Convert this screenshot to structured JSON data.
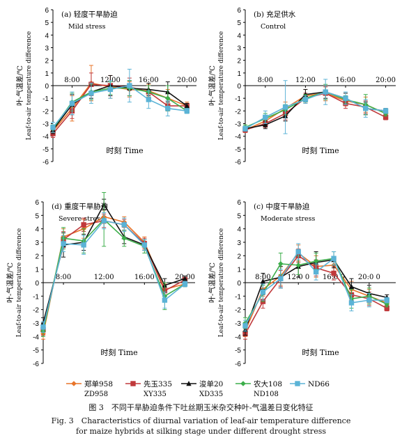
{
  "legend": [
    {
      "name": "郑单958",
      "name2": "ZD958",
      "color": "#e8752a",
      "marker": "diamond"
    },
    {
      "name": "先玉335",
      "name2": "XY335",
      "color": "#c0393b",
      "marker": "square"
    },
    {
      "name": "浚单20",
      "name2": "XD335",
      "color": "#111111",
      "marker": "triangle"
    },
    {
      "name": "农大108",
      "name2": "ND108",
      "color": "#3cae4a",
      "marker": "diamond"
    },
    {
      "name": "ND66",
      "name2": "",
      "color": "#5bb3d6",
      "marker": "square"
    }
  ],
  "caption": {
    "cn": "图 3　不同干旱胁迫条件下吐丝期玉米杂交种叶-气温差日变化特征",
    "en1": "Fig. 3　Characteristics of diurnal variation of leaf-air temperature difference",
    "en2": "for maize hybrids at silking stage under different drought stress"
  },
  "chart_data": [
    {
      "type": "line",
      "panel_id": "a",
      "title_cn": "(a) 轻度干旱胁迫",
      "title_en": "Mild stress",
      "xlabel": "时刻 Time",
      "ylabel_cn": "叶-气温差/℃",
      "ylabel_en": "Leaf-to-air temperature difference",
      "x": [
        6,
        8,
        10,
        12,
        14,
        16,
        18,
        20
      ],
      "x_tick_labels": [
        {
          "x": 8,
          "label": "8:00"
        },
        {
          "x": 12,
          "label": "12:00"
        },
        {
          "x": 16,
          "label": "16:00"
        },
        {
          "x": 20,
          "label": "20:00"
        }
      ],
      "ylim": [
        -6,
        6
      ],
      "y_ticks": [
        -6,
        -5,
        -4,
        -3,
        -2,
        -1,
        0,
        1,
        2,
        3,
        4,
        5,
        6
      ],
      "series": [
        {
          "name": "郑单958",
          "values": [
            -3.6,
            -1.8,
            0.2,
            -0.1,
            -0.3,
            -0.4,
            -1.0,
            -1.6
          ],
          "errors": [
            0.3,
            1.0,
            1.4,
            0.9,
            0.6,
            0.5,
            0.7,
            0.3
          ]
        },
        {
          "name": "先玉335",
          "values": [
            -3.8,
            -2.0,
            0.1,
            0.0,
            -0.1,
            -0.5,
            -1.6,
            -1.6
          ],
          "errors": [
            0.3,
            0.6,
            0.9,
            0.8,
            0.7,
            0.5,
            0.4,
            0.2
          ]
        },
        {
          "name": "浚单20",
          "values": [
            -3.5,
            -1.5,
            -0.5,
            0.0,
            -0.2,
            -0.3,
            -0.5,
            -1.6
          ],
          "errors": [
            0.3,
            0.8,
            0.5,
            0.8,
            0.6,
            0.5,
            0.8,
            0.2
          ]
        },
        {
          "name": "农大108",
          "values": [
            -3.4,
            -1.3,
            -0.5,
            -0.2,
            -0.2,
            -0.5,
            -1.0,
            -2.0
          ],
          "errors": [
            0.3,
            0.7,
            0.6,
            0.5,
            0.6,
            0.5,
            1.0,
            0.2
          ]
        },
        {
          "name": "ND66",
          "values": [
            -3.3,
            -1.4,
            -0.6,
            -0.3,
            0.0,
            -1.1,
            -1.8,
            -2.0
          ],
          "errors": [
            0.4,
            0.9,
            0.8,
            0.7,
            1.3,
            0.7,
            0.6,
            0.2
          ]
        }
      ]
    },
    {
      "type": "line",
      "panel_id": "b",
      "title_cn": "(b) 充足供水",
      "title_en": "Control",
      "xlabel": "时刻 Time",
      "ylabel_cn": "叶-气温差/℃",
      "ylabel_en": "Leaf-to-air temperature difference",
      "x": [
        6,
        8,
        10,
        12,
        14,
        16,
        18,
        20
      ],
      "x_tick_labels": [
        {
          "x": 8,
          "label": "8:00"
        },
        {
          "x": 12,
          "label": "12:00"
        },
        {
          "x": 16,
          "label": "16:00"
        },
        {
          "x": 20,
          "label": "20:00"
        }
      ],
      "ylim": [
        -6,
        6
      ],
      "y_ticks": [
        -6,
        -5,
        -4,
        -3,
        -2,
        -1,
        0,
        1,
        2,
        3,
        4,
        5,
        6
      ],
      "series": [
        {
          "name": "郑单958",
          "values": [
            -3.5,
            -2.8,
            -1.8,
            -0.8,
            -0.6,
            -1.2,
            -1.5,
            -2.2
          ],
          "errors": [
            0.2,
            0.4,
            0.5,
            0.5,
            0.6,
            0.4,
            0.6,
            0.2
          ]
        },
        {
          "name": "先玉335",
          "values": [
            -3.5,
            -3.0,
            -2.2,
            -1.0,
            -0.6,
            -1.4,
            -1.7,
            -2.5
          ],
          "errors": [
            0.2,
            0.3,
            0.5,
            0.4,
            0.5,
            0.4,
            0.5,
            0.2
          ]
        },
        {
          "name": "浚单20",
          "values": [
            -3.4,
            -3.1,
            -2.4,
            -0.7,
            -0.5,
            -1.0,
            -1.8,
            -2.0
          ],
          "errors": [
            0.2,
            0.3,
            0.4,
            0.4,
            0.5,
            0.4,
            0.5,
            0.2
          ]
        },
        {
          "name": "农大108",
          "values": [
            -3.3,
            -2.6,
            -1.9,
            -1.0,
            -0.5,
            -1.1,
            -1.5,
            -2.2
          ],
          "errors": [
            0.2,
            0.4,
            0.4,
            0.3,
            0.6,
            0.3,
            0.8,
            0.2
          ]
        },
        {
          "name": "ND66",
          "values": [
            -3.4,
            -2.5,
            -1.7,
            -1.1,
            -0.5,
            -1.0,
            -1.8,
            -2.0
          ],
          "errors": [
            0.2,
            0.5,
            2.1,
            0.3,
            1.0,
            0.5,
            0.7,
            0.2
          ]
        }
      ]
    },
    {
      "type": "line",
      "panel_id": "d",
      "title_cn": "(d) 重度干旱胁迫",
      "title_en": "Severe stress",
      "xlabel": "时刻 Time",
      "ylabel_cn": "叶-气温差/℃",
      "ylabel_en": "Leaf-to-air temperature difference",
      "x": [
        6,
        8,
        10,
        12,
        14,
        16,
        18,
        20
      ],
      "x_tick_labels": [
        {
          "x": 8,
          "label": "8:00"
        },
        {
          "x": 12,
          "label": "12:00"
        },
        {
          "x": 16,
          "label": "16:00"
        },
        {
          "x": 20,
          "label": "20:00"
        }
      ],
      "ylim": [
        -6,
        6
      ],
      "y_ticks": [
        -6,
        -5,
        -4,
        -3,
        -2,
        -1,
        0,
        1,
        2,
        3,
        4,
        5,
        6
      ],
      "series": [
        {
          "name": "郑单958",
          "values": [
            -3.8,
            3.4,
            4.0,
            4.9,
            4.5,
            3.0,
            -0.5,
            -0.1
          ],
          "errors": [
            0.4,
            0.6,
            0.7,
            0.5,
            0.4,
            0.4,
            0.4,
            0.2
          ]
        },
        {
          "name": "先玉335",
          "values": [
            -3.5,
            3.2,
            4.3,
            4.6,
            4.3,
            2.9,
            -0.6,
            0.2
          ],
          "errors": [
            0.4,
            0.6,
            0.5,
            0.5,
            0.4,
            0.4,
            0.6,
            0.2
          ]
        },
        {
          "name": "浚单20",
          "values": [
            -3.0,
            2.8,
            3.0,
            5.8,
            3.4,
            2.8,
            -0.2,
            0.3
          ],
          "errors": [
            0.4,
            0.9,
            0.6,
            0.4,
            0.5,
            0.4,
            0.5,
            0.2
          ]
        },
        {
          "name": "农大108",
          "values": [
            -3.6,
            3.3,
            3.1,
            4.7,
            3.3,
            2.7,
            -1.0,
            -0.1
          ],
          "errors": [
            0.4,
            0.8,
            0.9,
            2.0,
            0.6,
            0.5,
            1.0,
            0.2
          ]
        },
        {
          "name": "ND66",
          "values": [
            -3.3,
            2.9,
            2.8,
            4.6,
            4.3,
            2.8,
            -1.3,
            -0.1
          ],
          "errors": [
            0.4,
            0.6,
            0.7,
            0.6,
            0.5,
            0.4,
            0.6,
            0.2
          ]
        }
      ]
    },
    {
      "type": "line",
      "panel_id": "c",
      "title_cn": "(c) 中度干旱胁迫",
      "title_en": "Moderate stress",
      "xlabel": "时刻 Time",
      "ylabel_cn": "叶-气温差/℃",
      "ylabel_en": "Leaf-to-air temperature difference",
      "x": [
        6,
        8,
        10,
        12,
        14,
        16,
        18,
        20,
        22
      ],
      "x_tick_labels": [
        {
          "x": 8,
          "label": "8:00"
        },
        {
          "x": 12,
          "label": "12:0 0"
        },
        {
          "x": 16,
          "label": "16:0 0"
        },
        {
          "x": 20,
          "label": "20:0 0"
        }
      ],
      "ylim": [
        -6,
        6
      ],
      "y_ticks": [
        -6,
        -5,
        -4,
        -3,
        -2,
        -1,
        0,
        1,
        2,
        3,
        4,
        5,
        6
      ],
      "series": [
        {
          "name": "郑单958",
          "values": [
            -3.6,
            -0.5,
            0.5,
            2.2,
            1.2,
            1.3,
            -0.5,
            -1.0,
            -1.5
          ],
          "errors": [
            0.4,
            0.5,
            0.7,
            0.6,
            0.8,
            0.6,
            0.6,
            0.5,
            0.2
          ]
        },
        {
          "name": "先玉335",
          "values": [
            -3.8,
            -1.4,
            0.3,
            2.0,
            1.1,
            0.7,
            -0.9,
            -1.2,
            -1.9
          ],
          "errors": [
            0.4,
            0.5,
            0.6,
            0.5,
            0.6,
            0.5,
            0.4,
            0.5,
            0.2
          ]
        },
        {
          "name": "浚单20",
          "values": [
            -3.5,
            0.1,
            0.4,
            1.2,
            1.5,
            1.7,
            -0.3,
            -0.8,
            -1.1
          ],
          "errors": [
            0.4,
            0.6,
            0.8,
            0.8,
            0.8,
            0.6,
            0.6,
            0.6,
            0.2
          ]
        },
        {
          "name": "农大108",
          "values": [
            -3.0,
            -0.8,
            1.4,
            1.3,
            1.6,
            1.8,
            -1.2,
            -1.0,
            -1.6
          ],
          "errors": [
            0.4,
            0.6,
            0.8,
            0.7,
            0.6,
            0.5,
            0.7,
            0.6,
            0.2
          ]
        },
        {
          "name": "ND66",
          "values": [
            -3.2,
            -0.7,
            0.3,
            2.3,
            0.8,
            1.8,
            -1.5,
            -1.3,
            -1.3
          ],
          "errors": [
            0.4,
            0.6,
            0.7,
            0.6,
            0.6,
            0.5,
            0.6,
            0.5,
            0.2
          ]
        }
      ]
    }
  ]
}
